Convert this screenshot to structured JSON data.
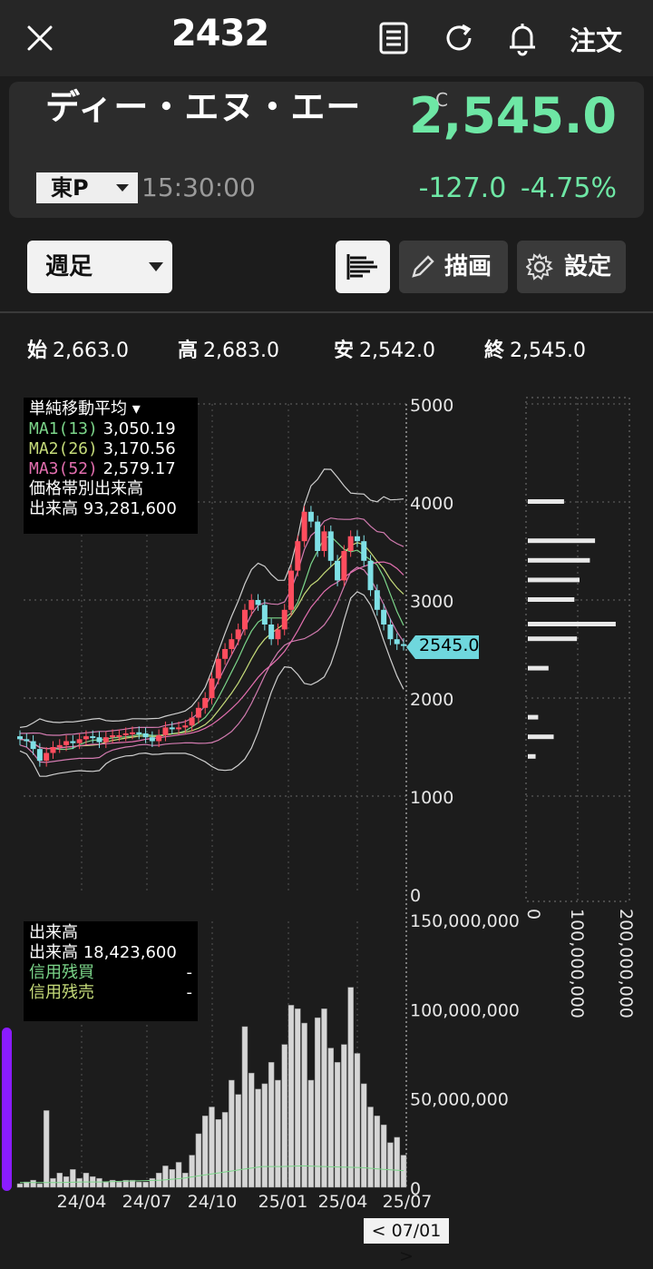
{
  "header": {
    "title": "2432",
    "order_label": "注文"
  },
  "stock": {
    "name": "ディー・エヌ・エー",
    "market": "東P",
    "time": "15:30:00",
    "price_flag": "C",
    "price": "2,545.0",
    "change": "-127.0",
    "change_pct": "-4.75%"
  },
  "controls": {
    "period": "週足",
    "draw": "描画",
    "settings": "設定"
  },
  "ohlc": {
    "open_label": "始",
    "open": "2,663.0",
    "high_label": "高",
    "high": "2,683.0",
    "low_label": "安",
    "low": "2,542.0",
    "close_label": "終",
    "close": "2,545.0"
  },
  "price_legend": {
    "title": "単純移動平均",
    "ma1_label": "MA1(13)",
    "ma1": "3,050.19",
    "ma2_label": "MA2(26)",
    "ma2": "3,170.56",
    "ma3_label": "MA3(52)",
    "ma3": "2,579.17",
    "vol_profile_title": "価格帯別出来高",
    "vol_label": "出来高",
    "vol": "93,281,600"
  },
  "volume_legend": {
    "title": "出来高",
    "vol_label": "出来高",
    "vol": "18,423,600",
    "margin_buy_label": "信用残買",
    "margin_buy": "-",
    "margin_sell_label": "信用残売",
    "margin_sell": "-"
  },
  "price_axis": [
    "5000",
    "4000",
    "3000",
    "2000",
    "1000",
    "0"
  ],
  "current_price_tag": "2545.0",
  "volume_axis": [
    "150,000,000",
    "100,000,000",
    "50,000,000",
    "0"
  ],
  "profile_axis": [
    "0",
    "100,000,000",
    "200,000,000"
  ],
  "x_labels": [
    "24/04",
    "24/07",
    "24/10",
    "25/01",
    "25/04",
    "25/07"
  ],
  "date_cursor": "< 07/01 >",
  "colors": {
    "up": "#ff4d5e",
    "down": "#7fe0e6",
    "price_green": "#6ee7a5",
    "ma1": "#7cd68a",
    "ma2": "#c6dc7a",
    "ma3": "#e46fb0"
  },
  "chart_data": {
    "type": "candlestick",
    "x_range": [
      "2024-01",
      "2025-07"
    ],
    "y_range": [
      0,
      5000
    ],
    "closes": [
      1580,
      1560,
      1480,
      1360,
      1440,
      1500,
      1520,
      1560,
      1540,
      1580,
      1610,
      1600,
      1550,
      1600,
      1620,
      1620,
      1640,
      1650,
      1640,
      1600,
      1560,
      1620,
      1700,
      1690,
      1700,
      1720,
      1800,
      1900,
      2000,
      2200,
      2400,
      2500,
      2600,
      2700,
      2900,
      3000,
      2950,
      2750,
      2600,
      2700,
      2900,
      3300,
      3600,
      3900,
      3800,
      3500,
      3700,
      3400,
      3200,
      3500,
      3650,
      3600,
      3400,
      3100,
      2900,
      2750,
      2600,
      2550,
      2545
    ],
    "volume_range": [
      0,
      150000000
    ],
    "volumes": [
      2,
      3,
      4,
      2,
      43,
      5,
      8,
      6,
      10,
      5,
      8,
      6,
      5,
      3,
      4,
      3,
      4,
      4,
      3,
      3,
      5,
      8,
      12,
      10,
      14,
      8,
      18,
      30,
      40,
      45,
      38,
      42,
      60,
      52,
      90,
      64,
      55,
      58,
      70,
      60,
      80,
      102,
      100,
      92,
      60,
      95,
      100,
      78,
      70,
      80,
      112,
      75,
      58,
      45,
      40,
      35,
      25,
      28,
      18
    ],
    "volume_ma": [
      8,
      8,
      8,
      9,
      9,
      10,
      11,
      12,
      15,
      20,
      25,
      30,
      35,
      35,
      36,
      35,
      34,
      33,
      30,
      28
    ],
    "volume_profile": [
      {
        "price": 4000,
        "vol": 70
      },
      {
        "price": 3600,
        "vol": 130
      },
      {
        "price": 3400,
        "vol": 120
      },
      {
        "price": 3200,
        "vol": 100
      },
      {
        "price": 3000,
        "vol": 90
      },
      {
        "price": 2750,
        "vol": 170
      },
      {
        "price": 2600,
        "vol": 95
      },
      {
        "price": 2300,
        "vol": 40
      },
      {
        "price": 1800,
        "vol": 20
      },
      {
        "price": 1600,
        "vol": 50
      },
      {
        "price": 1400,
        "vol": 15
      }
    ]
  }
}
